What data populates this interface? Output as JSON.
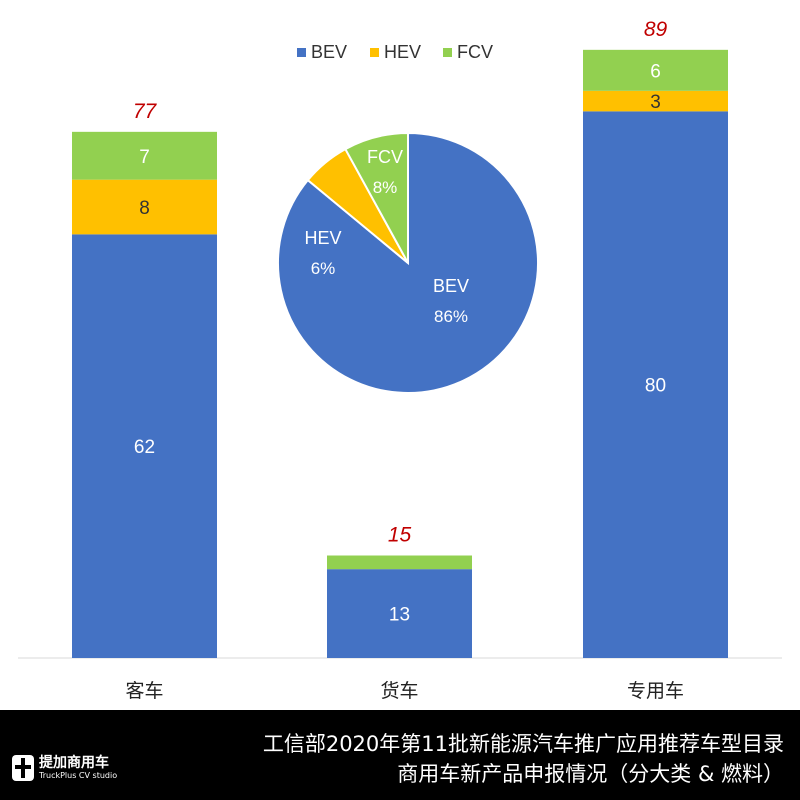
{
  "chart_data": {
    "type": "stacked-bar",
    "categories": [
      "客车",
      "货车",
      "专用车"
    ],
    "series": [
      {
        "name": "BEV",
        "values": [
          62,
          13,
          80
        ],
        "color": "#4472C4"
      },
      {
        "name": "HEV",
        "values": [
          8,
          0,
          3
        ],
        "color": "#FFC000"
      },
      {
        "name": "FCV",
        "values": [
          7,
          2,
          6
        ],
        "color": "#92D050"
      }
    ],
    "totals": [
      77,
      15,
      89
    ],
    "total_label_color": "#C00000",
    "ylim": [
      0,
      96
    ],
    "grid": false,
    "legend": "top",
    "inset_pie": {
      "type": "pie",
      "slices": [
        {
          "label": "BEV",
          "percent": 86,
          "text": "86%",
          "color": "#4472C4"
        },
        {
          "label": "HEV",
          "percent": 6,
          "text": "6%",
          "color": "#FFC000"
        },
        {
          "label": "FCV",
          "percent": 8,
          "text": "8%",
          "color": "#92D050"
        }
      ]
    }
  },
  "caption": {
    "line1": "工信部2020年第11批新能源汽车推广应用推荐车型目录",
    "line2": "商用车新产品申报情况（分大类 & 燃料）"
  },
  "logo": {
    "cn": "提加商用车",
    "en": "TruckPlus CV studio"
  }
}
